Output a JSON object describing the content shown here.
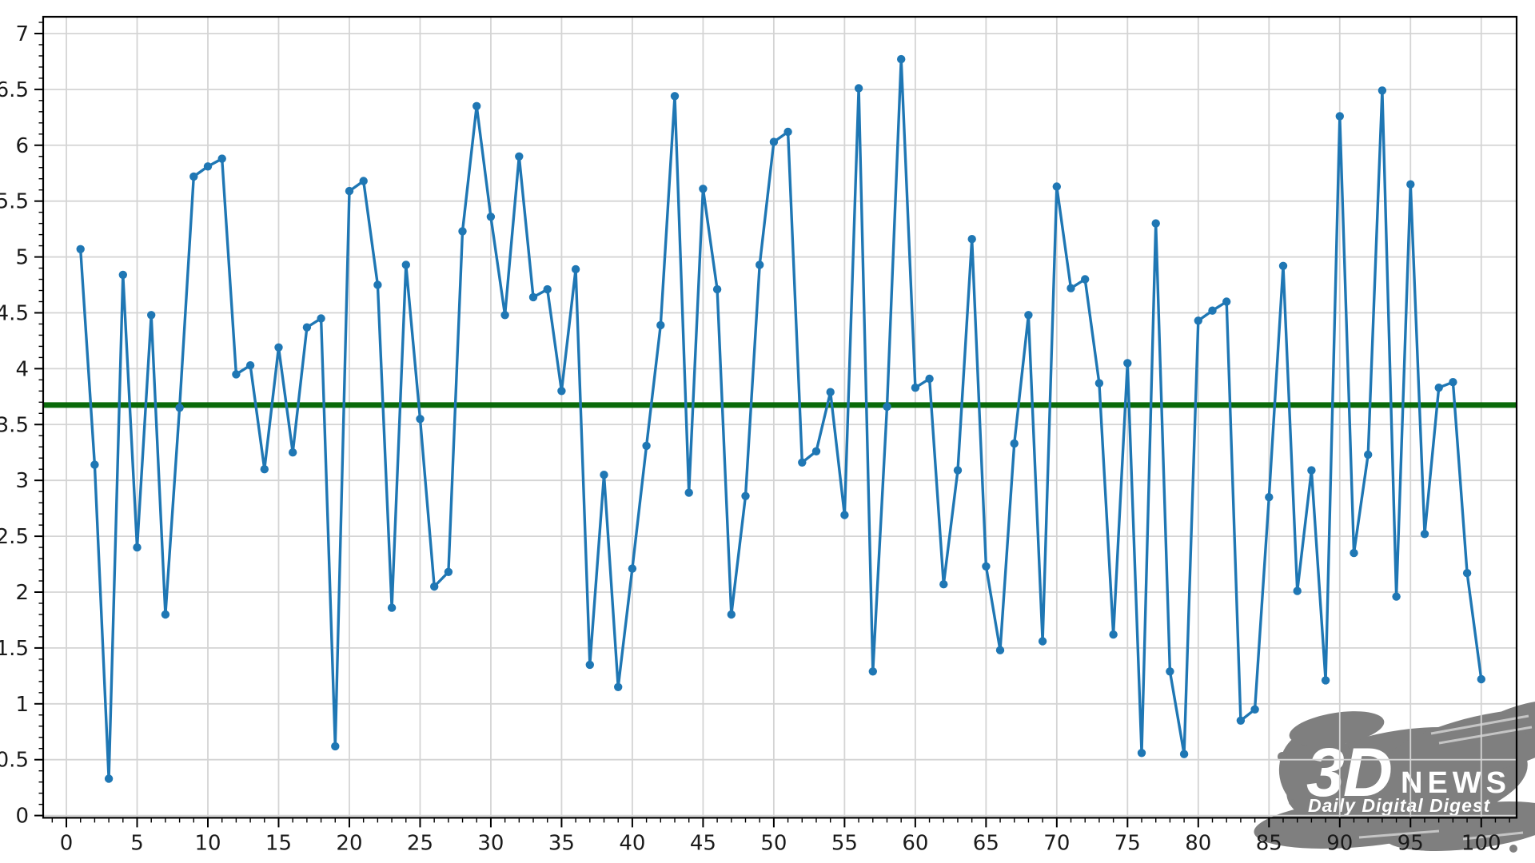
{
  "figure": {
    "background": "#ffffff",
    "plot_background": "#ffffff",
    "grid_color": "#d4d4d4",
    "spine_color": "#000000",
    "tick_label_color": "#1a1a1a",
    "tick_label_size": 26
  },
  "chart_data": {
    "type": "line",
    "title": "",
    "xlabel": "",
    "ylabel": "",
    "legend": null,
    "grid": true,
    "marker": "circle",
    "series_name": "values",
    "series_color": "#1f77b4",
    "xlim": [
      -1.64,
      102.5
    ],
    "ylim": [
      -0.02,
      7.15
    ],
    "x_major_ticks": [
      0,
      5,
      10,
      15,
      20,
      25,
      30,
      35,
      40,
      45,
      50,
      55,
      60,
      65,
      70,
      75,
      80,
      85,
      90,
      95,
      100
    ],
    "x_minor_step": 1,
    "y_major_ticks": [
      0,
      0.5,
      1,
      1.5,
      2,
      2.5,
      3,
      3.5,
      4,
      4.5,
      5,
      5.5,
      6,
      6.5,
      7
    ],
    "y_major_tick_labels": [
      "0",
      "0.5",
      "1",
      "1.5",
      "2",
      "2.5",
      "3",
      "3.5",
      "4",
      "4.5",
      "5",
      "5.5",
      "6",
      "6.5",
      "7"
    ],
    "y_minor_step": 0.1,
    "x": [
      1,
      2,
      3,
      4,
      5,
      6,
      7,
      8,
      9,
      10,
      11,
      12,
      13,
      14,
      15,
      16,
      17,
      18,
      19,
      20,
      21,
      22,
      23,
      24,
      25,
      26,
      27,
      28,
      29,
      30,
      31,
      32,
      33,
      34,
      35,
      36,
      37,
      38,
      39,
      40,
      41,
      42,
      43,
      44,
      45,
      46,
      47,
      48,
      49,
      50,
      51,
      52,
      53,
      54,
      55,
      56,
      57,
      58,
      59,
      60,
      61,
      62,
      63,
      64,
      65,
      66,
      67,
      68,
      69,
      70,
      71,
      72,
      73,
      74,
      75,
      76,
      77,
      78,
      79,
      80,
      81,
      82,
      83,
      84,
      85,
      86,
      87,
      88,
      89,
      90,
      91,
      92,
      93,
      94,
      95,
      96,
      97,
      98,
      99,
      100
    ],
    "values": [
      5.07,
      3.14,
      0.33,
      4.84,
      2.4,
      4.48,
      1.8,
      3.65,
      5.72,
      5.81,
      5.88,
      3.95,
      4.03,
      3.1,
      4.19,
      3.25,
      4.37,
      4.45,
      0.62,
      5.59,
      5.68,
      4.75,
      1.86,
      4.93,
      3.55,
      2.05,
      2.18,
      5.23,
      6.35,
      5.36,
      4.48,
      5.9,
      4.64,
      4.71,
      3.8,
      4.89,
      1.35,
      3.05,
      1.15,
      2.21,
      3.31,
      4.39,
      6.44,
      2.89,
      5.61,
      4.71,
      1.8,
      2.86,
      4.93,
      6.03,
      6.12,
      3.16,
      3.26,
      3.79,
      2.69,
      6.51,
      1.29,
      3.66,
      6.77,
      3.83,
      3.91,
      2.07,
      3.09,
      5.16,
      2.23,
      1.48,
      3.33,
      4.48,
      1.56,
      5.63,
      4.72,
      4.8,
      3.87,
      1.62,
      4.05,
      0.56,
      5.3,
      1.29,
      0.55,
      4.43,
      4.52,
      4.6,
      0.85,
      0.95,
      2.85,
      4.92,
      2.01,
      3.09,
      1.21,
      6.26,
      2.35,
      3.23,
      6.49,
      1.96,
      5.65,
      2.52,
      3.83,
      3.88,
      2.17,
      1.22
    ],
    "mean_line": {
      "value": 3.675,
      "color": "#0a6a0a",
      "width": 7
    }
  },
  "watermark": {
    "brand": "3D",
    "brand_suffix": "NEWS",
    "tagline": "Daily Digital Digest",
    "color": "#7f7f7f",
    "text_color": "#ffffff"
  }
}
